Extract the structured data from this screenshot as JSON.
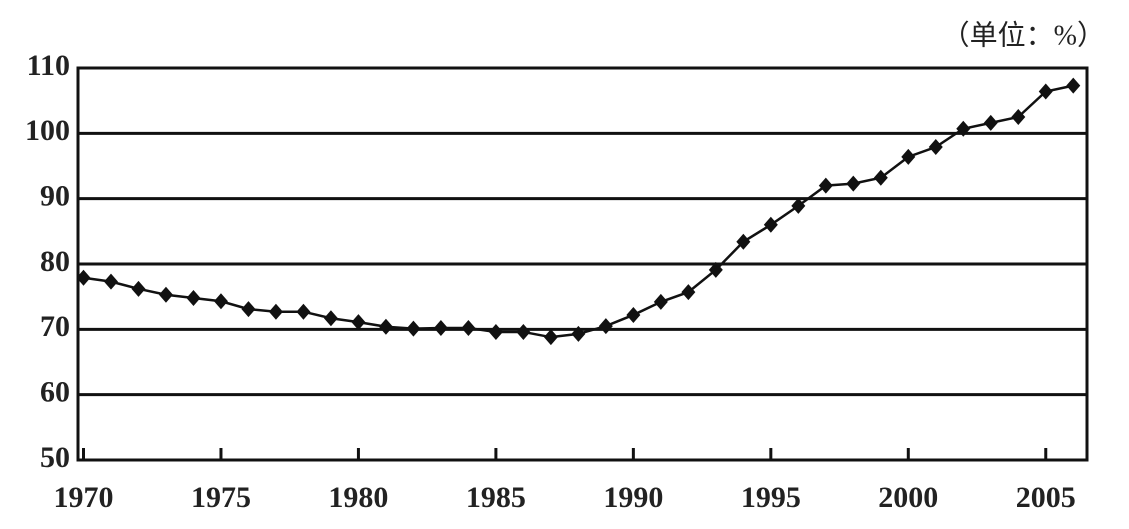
{
  "chart_data": {
    "type": "line",
    "unit_label": "（单位：%）",
    "x": [
      1970,
      1971,
      1972,
      1973,
      1974,
      1975,
      1976,
      1977,
      1978,
      1979,
      1980,
      1981,
      1982,
      1983,
      1984,
      1985,
      1986,
      1987,
      1988,
      1989,
      1990,
      1991,
      1992,
      1993,
      1994,
      1995,
      1996,
      1997,
      1998,
      1999,
      2000,
      2001,
      2002,
      2003,
      2004,
      2005,
      2006
    ],
    "values": [
      77.9,
      77.3,
      76.2,
      75.3,
      74.8,
      74.3,
      73.1,
      72.7,
      72.7,
      71.7,
      71.1,
      70.4,
      70.1,
      70.2,
      70.2,
      69.6,
      69.6,
      68.8,
      69.3,
      70.5,
      72.2,
      74.2,
      75.7,
      79.1,
      83.4,
      86.0,
      88.9,
      92.0,
      92.3,
      93.2,
      96.4,
      97.9,
      100.7,
      101.6,
      102.5,
      106.4,
      107.3
    ],
    "color": "#111111",
    "xlim": [
      1969.8,
      2006.5
    ],
    "xticks": [
      1970,
      1975,
      1980,
      1985,
      1990,
      1995,
      2000,
      2005
    ],
    "ylim": [
      50,
      110
    ],
    "yticks": [
      50,
      60,
      70,
      80,
      90,
      100,
      110
    ],
    "grid": true
  }
}
